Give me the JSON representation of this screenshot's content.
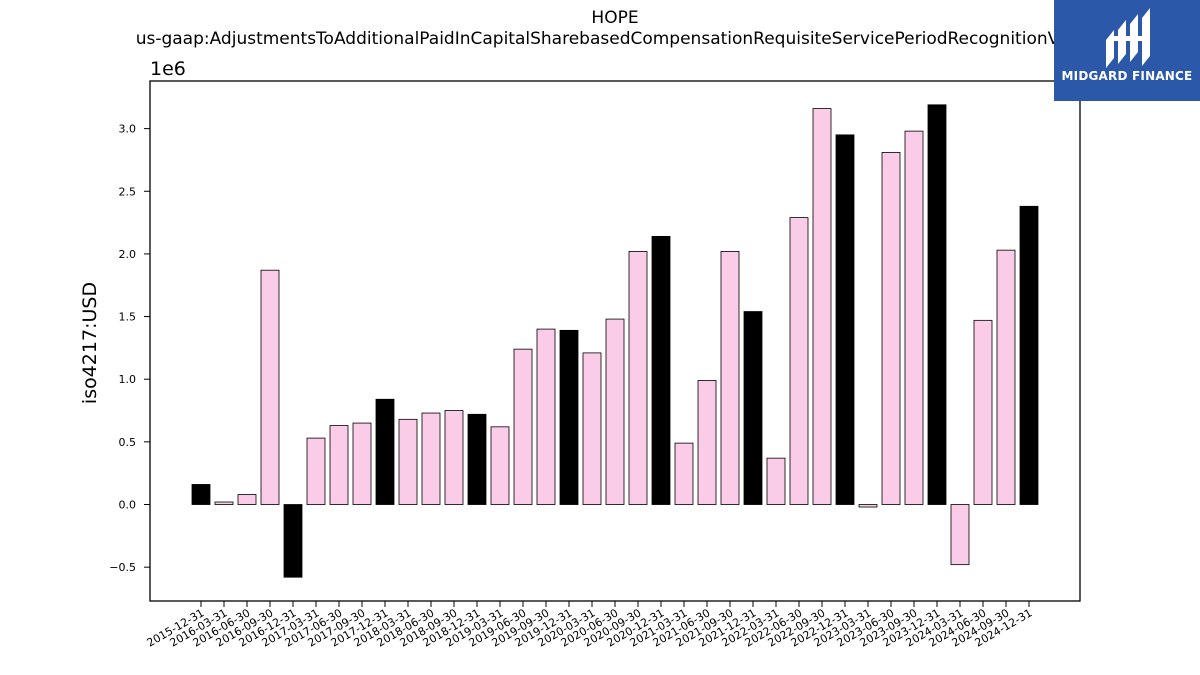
{
  "chart_data": {
    "type": "bar",
    "title": "HOPE",
    "subtitle": "us-gaap:AdjustmentsToAdditionalPaidInCapitalSharebasedCompensationRequisiteServicePeriodRecognitionValue",
    "ylabel": "iso4217:USD",
    "xlabel": "",
    "y_scale_label": "1e6",
    "y_multiplier": 1000000,
    "ylim": [
      -0.77,
      3.38
    ],
    "yticks": [
      -0.5,
      0.0,
      0.5,
      1.0,
      1.5,
      2.0,
      2.5,
      3.0
    ],
    "ytick_labels": [
      "−0.5",
      "0.0",
      "0.5",
      "1.0",
      "1.5",
      "2.0",
      "2.5",
      "3.0"
    ],
    "grid": false,
    "colors": {
      "quarter": "#fbcce7",
      "year_end": "#000000",
      "edge": "#000000"
    },
    "categories": [
      "2015-12-31",
      "2016-03-31",
      "2016-06-30",
      "2016-09-30",
      "2016-12-31",
      "2017-03-31",
      "2017-06-30",
      "2017-09-30",
      "2017-12-31",
      "2018-03-31",
      "2018-06-30",
      "2018-09-30",
      "2018-12-31",
      "2019-03-31",
      "2019-06-30",
      "2019-09-30",
      "2019-12-31",
      "2020-03-31",
      "2020-06-30",
      "2020-09-30",
      "2020-12-31",
      "2021-03-31",
      "2021-06-30",
      "2021-09-30",
      "2021-12-31",
      "2022-03-31",
      "2022-06-30",
      "2022-09-30",
      "2022-12-31",
      "2023-03-31",
      "2023-06-30",
      "2023-09-30",
      "2023-12-31",
      "2024-03-31",
      "2024-06-30",
      "2024-09-30",
      "2024-12-31"
    ],
    "values": [
      160000,
      20000,
      80000,
      1870000,
      -580000,
      530000,
      630000,
      650000,
      840000,
      680000,
      730000,
      750000,
      720000,
      620000,
      1240000,
      1400000,
      1390000,
      1210000,
      1480000,
      2020000,
      2140000,
      490000,
      990000,
      2020000,
      1540000,
      370000,
      2290000,
      3160000,
      2950000,
      -20000,
      2810000,
      2980000,
      3190000,
      -480000,
      1470000,
      2030000,
      2380000
    ],
    "year_end_flags": [
      1,
      0,
      0,
      0,
      1,
      0,
      0,
      0,
      1,
      0,
      0,
      0,
      1,
      0,
      0,
      0,
      1,
      0,
      0,
      0,
      1,
      0,
      0,
      0,
      1,
      0,
      0,
      0,
      1,
      0,
      0,
      0,
      1,
      0,
      0,
      0,
      1
    ]
  },
  "logo": {
    "text": "MIDGARD FINANCE",
    "icon": "midgard-logo-icon"
  }
}
